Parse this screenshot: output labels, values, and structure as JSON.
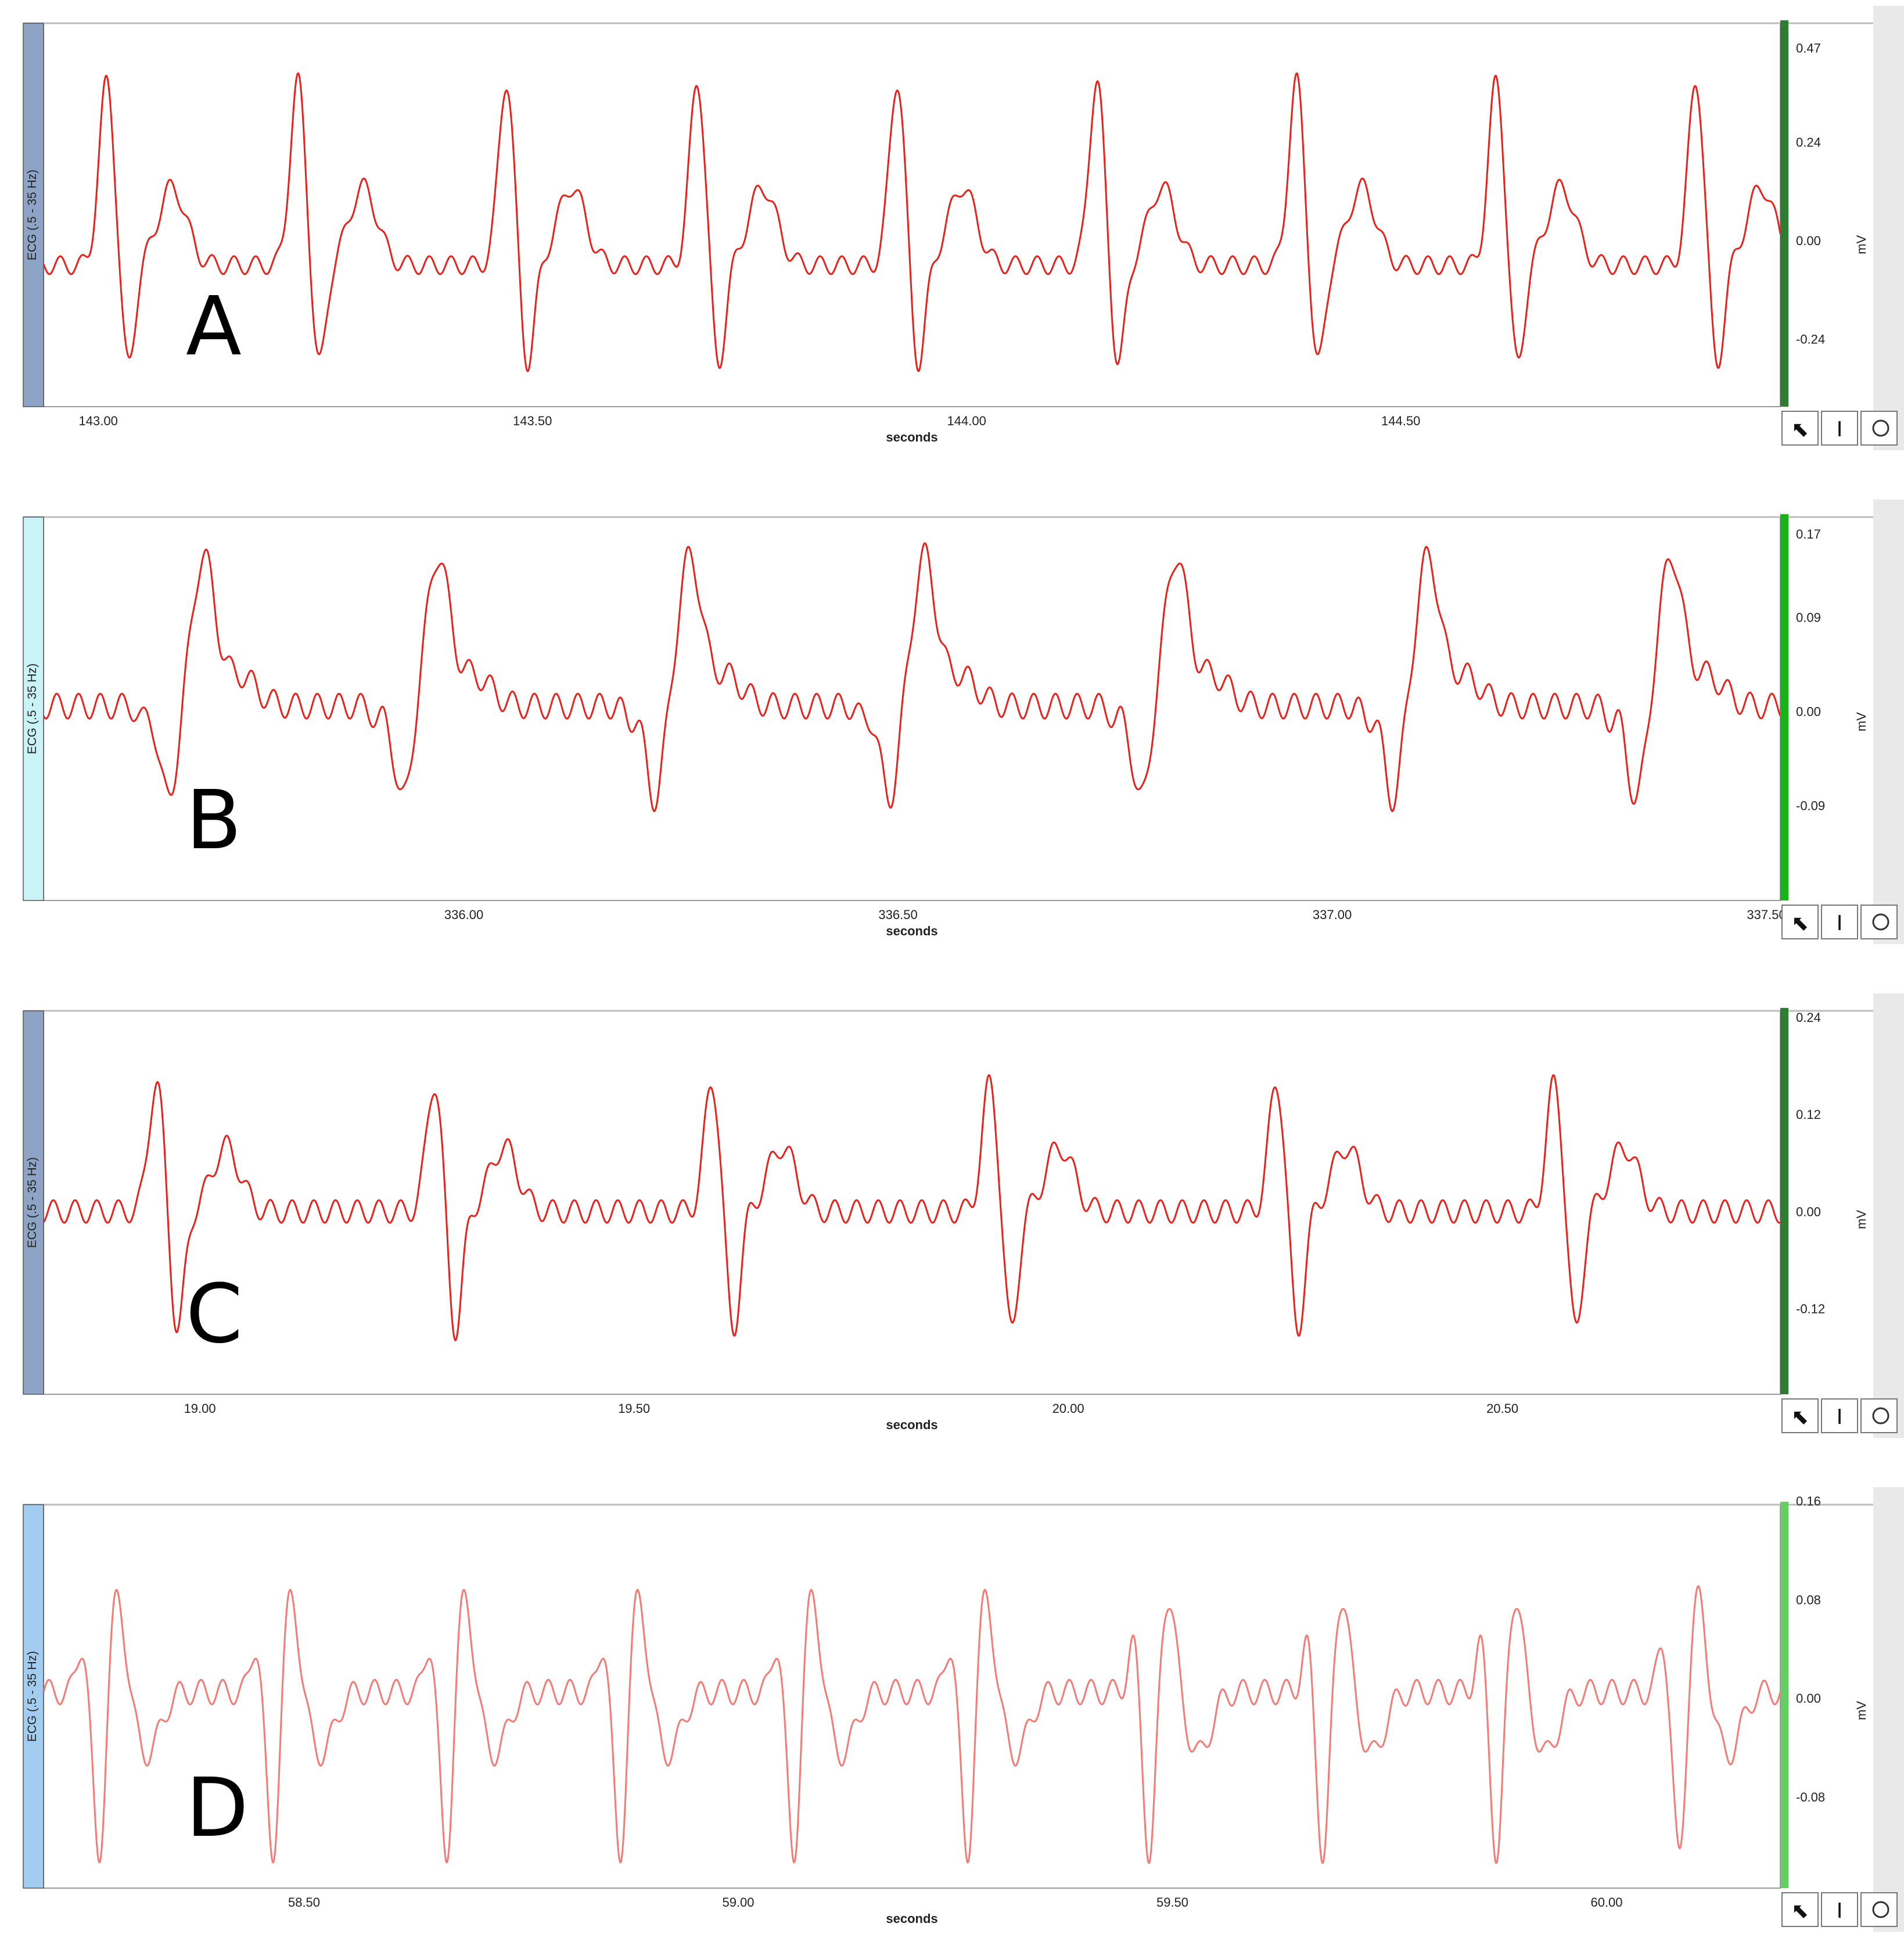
{
  "panels": [
    {
      "id": "A",
      "letter": "A",
      "channel_label": "ECG (.5 - 35 Hz)",
      "xlabel": "seconds",
      "ylabel": "mV",
      "channel_color": "#8ea4c7",
      "scale_color": "#2e7d32",
      "x_ticks": [
        "143.00",
        "143.50",
        "144.00",
        "144.50"
      ],
      "y_ticks": [
        "0.47",
        "0.24",
        "0.00",
        "-0.24"
      ],
      "chart_data": {
        "type": "line",
        "xlim": [
          142.937,
          144.937
        ],
        "ylim": [
          -0.405,
          0.53
        ],
        "grid": false,
        "series": [
          {
            "shape": "rs",
            "beats_t": [
              143.01,
              143.23,
              143.47,
              143.69,
              143.92,
              144.15,
              144.38,
              144.61,
              144.84
            ],
            "peak": 0.45,
            "trough": -0.25,
            "t_amp": 0.19,
            "t_delay": 0.045,
            "baseline": -0.06,
            "osc_amp": 0.022,
            "osc_freq": 40
          }
        ]
      },
      "toolbar": {
        "pointer": "⬉",
        "ibeam": "I"
      }
    },
    {
      "id": "B",
      "letter": "B",
      "channel_label": "ECG (.5 - 35 Hz)",
      "xlabel": "seconds",
      "ylabel": "mV",
      "channel_color": "#c9f3f7",
      "scale_color": "#19b219",
      "x_ticks": [
        "336.00",
        "336.50",
        "337.00",
        "337.50"
      ],
      "y_ticks": [
        "0.17",
        "0.09",
        "0.00",
        "-0.09"
      ],
      "chart_data": {
        "type": "line",
        "xlim": [
          335.516,
          337.516
        ],
        "ylim": [
          -0.181,
          0.186
        ],
        "grid": false,
        "series": [
          {
            "shape": "qr",
            "beats_t": [
              335.69,
              335.96,
              336.25,
              336.52,
              336.81,
              337.1,
              337.38
            ],
            "peak": 0.14,
            "trough": -0.09,
            "t_amp": 0.0,
            "t_delay": 0.05,
            "baseline": 0.005,
            "osc_amp": 0.012,
            "osc_freq": 40
          }
        ]
      },
      "toolbar": {
        "pointer": "⬉",
        "ibeam": "I"
      }
    },
    {
      "id": "C",
      "letter": "C",
      "channel_label": "ECG (.5 - 35 Hz)",
      "xlabel": "seconds",
      "ylabel": "mV",
      "channel_color": "#8ea4c7",
      "scale_color": "#2e7d32",
      "x_ticks": [
        "19.00",
        "19.50",
        "20.00",
        "20.50"
      ],
      "y_ticks": [
        "0.24",
        "0.12",
        "0.00",
        "-0.12"
      ],
      "chart_data": {
        "type": "line",
        "xlim": [
          18.82,
          20.82
        ],
        "ylim": [
          -0.226,
          0.248
        ],
        "grid": false,
        "series": [
          {
            "shape": "rs",
            "beats_t": [
              18.95,
              19.27,
              19.59,
              19.91,
              20.24,
              20.56
            ],
            "peak": 0.16,
            "trough": -0.15,
            "t_amp": 0.08,
            "t_delay": 0.05,
            "baseline": 0.0,
            "osc_amp": 0.014,
            "osc_freq": 40
          }
        ]
      },
      "toolbar": {
        "pointer": "⬉",
        "ibeam": "I"
      }
    },
    {
      "id": "D",
      "letter": "D",
      "channel_label": "ECG (.5 - 35 Hz)",
      "xlabel": "seconds",
      "ylabel": "mV",
      "channel_color": "#a3cdf0",
      "scale_color": "#66cc66",
      "x_ticks": [
        "58.50",
        "59.00",
        "59.50",
        "60.00"
      ],
      "y_ticks": [
        "0.16",
        "0.08",
        "0.00",
        "-0.08"
      ],
      "chart_data": {
        "type": "line",
        "xlim": [
          58.2,
          60.2
        ],
        "ylim": [
          -0.154,
          0.157
        ],
        "grid": false,
        "series": [
          {
            "shape": "biphasic",
            "beats_t": [
              58.28,
              58.48,
              58.68,
              58.88,
              59.08,
              59.28,
              59.49,
              59.69,
              59.89,
              60.1
            ],
            "peak": 0.08,
            "trough": -0.14,
            "t_amp": -0.05,
            "t_delay": 0.04,
            "baseline": 0.005,
            "osc_amp": 0.01,
            "osc_freq": 40
          }
        ]
      },
      "toolbar": {
        "pointer": "⬉",
        "ibeam": "I"
      }
    }
  ],
  "style": {
    "trace_color": "#e8211b",
    "trace_color_d": "#f47a76"
  }
}
